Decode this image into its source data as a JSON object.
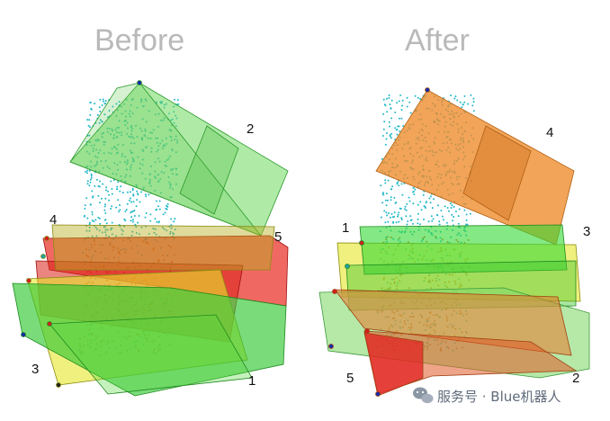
{
  "panels": [
    {
      "title": "Before",
      "labels": [
        "2",
        "4",
        "5",
        "3",
        "1"
      ]
    },
    {
      "title": "After",
      "labels": [
        "4",
        "1",
        "3",
        "5",
        "2"
      ]
    }
  ],
  "colors": {
    "green": "#3cc83c",
    "light_green": "#88e07a",
    "red": "#e02a22",
    "yellow": "#e6e62a",
    "orange": "#ec8a28",
    "cyan_points": "#22b8c8",
    "orange_points": "#d06a20"
  },
  "watermark": {
    "icon": "wechat-icon",
    "text": "服务号 · Blue机器人"
  }
}
